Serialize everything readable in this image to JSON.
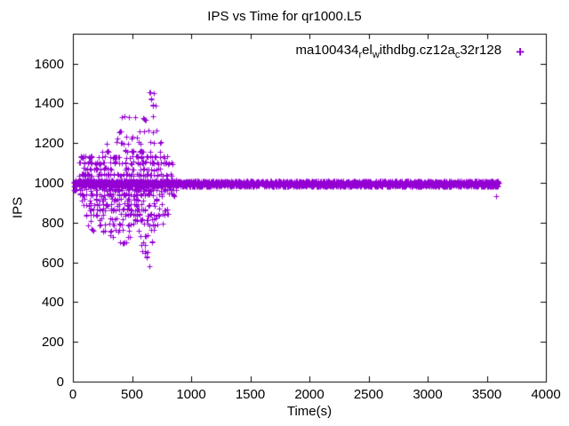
{
  "page": {
    "background": "#ffffff",
    "text_color": "#000000"
  },
  "chart_data": {
    "type": "scatter",
    "title": "IPS vs Time for qr1000.L5",
    "xlabel": "Time(s)",
    "ylabel": "IPS",
    "xlim": [
      0,
      4000
    ],
    "ylim": [
      0,
      1750
    ],
    "xticks": [
      0,
      500,
      1000,
      1500,
      2000,
      2500,
      3000,
      3500,
      4000
    ],
    "yticks": [
      0,
      200,
      400,
      600,
      800,
      1000,
      1200,
      1400,
      1600
    ],
    "grid": false,
    "legend": {
      "position": "top-right-inside",
      "series_label_plain": "ma100434_rel_withdbg.cz12a_c32r128",
      "label_parts": [
        {
          "t": "ma100434"
        },
        {
          "t": "r",
          "sub": true
        },
        {
          "t": "el"
        },
        {
          "t": "w",
          "sub": true
        },
        {
          "t": "ithdbg.cz12a"
        },
        {
          "t": "c",
          "sub": true
        },
        {
          "t": "32r128"
        }
      ],
      "marker": "plus",
      "marker_glyph": "+"
    },
    "series": [
      {
        "name": "ma100434_rel_withdbg.cz12a_c32r128",
        "color": "#9400D3",
        "marker": "plus",
        "band": {
          "y": 995,
          "y_jitter": 14,
          "x_range": [
            5,
            3600
          ],
          "count": 2600
        },
        "cloud_rows": [
          [
            1450,
            640,
            690,
            3
          ],
          [
            1425,
            648,
            668,
            2
          ],
          [
            1390,
            628,
            706,
            4
          ],
          [
            1330,
            408,
            706,
            6
          ],
          [
            1318,
            548,
            652,
            3
          ],
          [
            1260,
            368,
            712,
            8
          ],
          [
            1228,
            298,
            642,
            5
          ],
          [
            1200,
            278,
            762,
            12
          ],
          [
            1160,
            138,
            800,
            18
          ],
          [
            1130,
            58,
            852,
            45
          ],
          [
            1100,
            40,
            860,
            55
          ],
          [
            1070,
            48,
            820,
            35
          ],
          [
            1040,
            28,
            862,
            65
          ],
          [
            1012,
            18,
            880,
            50
          ],
          [
            965,
            8,
            900,
            60
          ],
          [
            940,
            28,
            880,
            55
          ],
          [
            915,
            58,
            722,
            30
          ],
          [
            890,
            78,
            762,
            35
          ],
          [
            865,
            88,
            800,
            40
          ],
          [
            840,
            98,
            822,
            35
          ],
          [
            815,
            108,
            702,
            20
          ],
          [
            790,
            118,
            762,
            22
          ],
          [
            760,
            148,
            702,
            16
          ],
          [
            730,
            178,
            662,
            8
          ],
          [
            700,
            298,
            682,
            8
          ],
          [
            688,
            558,
            642,
            4
          ],
          [
            652,
            558,
            672,
            4
          ],
          [
            628,
            598,
            662,
            2
          ],
          [
            585,
            632,
            648,
            1
          ]
        ],
        "outliers": [
          [
            3580,
            935
          ]
        ]
      }
    ]
  }
}
